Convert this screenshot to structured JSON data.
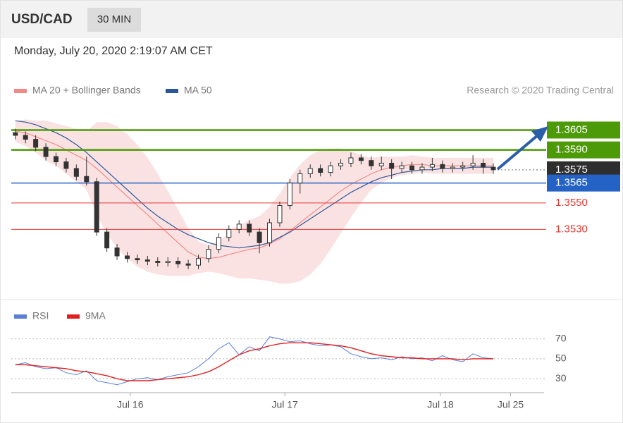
{
  "header": {
    "symbol": "USD/CAD",
    "interval": "30 MIN",
    "timestamp": "Monday, July 20, 2020 2:19:07 AM CET",
    "credit": "Research © 2020 Trading Central"
  },
  "chart_data": [
    {
      "type": "candlestick",
      "xlim": [
        -0.4,
        52.2
      ],
      "ylim": [
        1.3477,
        1.3626
      ],
      "open": [
        1.3603,
        1.3601,
        1.3598,
        1.3592,
        1.3585,
        1.3581,
        1.3576,
        1.357,
        1.3566,
        1.3528,
        1.3516,
        1.351,
        1.3508,
        1.3507,
        1.3506,
        1.3505,
        1.3506,
        1.3504,
        1.3503,
        1.3508,
        1.3515,
        1.3524,
        1.353,
        1.3534,
        1.3528,
        1.352,
        1.3535,
        1.3548,
        1.3565,
        1.3572,
        1.3576,
        1.3573,
        1.3578,
        1.358,
        1.3584,
        1.3582,
        1.3578,
        1.358,
        1.3576,
        1.3578,
        1.3575,
        1.3577,
        1.3579,
        1.3576,
        1.3577,
        1.3578,
        1.358,
        1.3577
      ],
      "high": [
        1.3606,
        1.3604,
        1.3601,
        1.3595,
        1.3588,
        1.3584,
        1.3579,
        1.3585,
        1.3569,
        1.3531,
        1.3519,
        1.3513,
        1.3511,
        1.351,
        1.3509,
        1.3509,
        1.3509,
        1.3507,
        1.3511,
        1.3518,
        1.3527,
        1.3533,
        1.3537,
        1.3537,
        1.3531,
        1.3538,
        1.3551,
        1.3568,
        1.3575,
        1.3579,
        1.3579,
        1.3581,
        1.3583,
        1.3588,
        1.3587,
        1.3585,
        1.3585,
        1.3583,
        1.3581,
        1.3581,
        1.358,
        1.3584,
        1.3582,
        1.358,
        1.3581,
        1.3586,
        1.3583,
        1.358
      ],
      "low": [
        1.3598,
        1.3595,
        1.3589,
        1.3582,
        1.3578,
        1.3573,
        1.3567,
        1.3563,
        1.3525,
        1.3513,
        1.3507,
        1.3505,
        1.3504,
        1.3503,
        1.3502,
        1.3502,
        1.3501,
        1.35,
        1.35,
        1.3505,
        1.3512,
        1.3521,
        1.3527,
        1.3525,
        1.3512,
        1.3517,
        1.3532,
        1.3545,
        1.3557,
        1.3569,
        1.357,
        1.357,
        1.3575,
        1.3577,
        1.3579,
        1.3575,
        1.3575,
        1.3568,
        1.3573,
        1.3572,
        1.3572,
        1.3574,
        1.3573,
        1.3573,
        1.3574,
        1.3575,
        1.3572,
        1.3572
      ],
      "close": [
        1.3601,
        1.3598,
        1.3592,
        1.3585,
        1.3581,
        1.3576,
        1.357,
        1.3566,
        1.3528,
        1.3516,
        1.351,
        1.3508,
        1.3507,
        1.3506,
        1.3505,
        1.3506,
        1.3504,
        1.3503,
        1.3508,
        1.3515,
        1.3524,
        1.353,
        1.3534,
        1.3528,
        1.352,
        1.3535,
        1.3548,
        1.3565,
        1.3572,
        1.3576,
        1.3573,
        1.3578,
        1.358,
        1.3584,
        1.3582,
        1.3578,
        1.358,
        1.3576,
        1.3578,
        1.3575,
        1.3577,
        1.3579,
        1.3576,
        1.3577,
        1.3578,
        1.358,
        1.3577,
        1.3575
      ],
      "series": [
        {
          "name": "MA 20 + Bollinger Bands",
          "color": "#f08a8a",
          "values": [
            1.3604,
            1.3603,
            1.36,
            1.3597,
            1.3594,
            1.359,
            1.3586,
            1.3582,
            1.3576,
            1.3569,
            1.3562,
            1.3555,
            1.3548,
            1.3541,
            1.3534,
            1.3527,
            1.352,
            1.3513,
            1.3509,
            1.3508,
            1.3509,
            1.3511,
            1.3513,
            1.3515,
            1.3516,
            1.3519,
            1.3523,
            1.3529,
            1.3535,
            1.3541,
            1.3547,
            1.3553,
            1.3559,
            1.3564,
            1.3568,
            1.3572,
            1.3575,
            1.3577,
            1.3578,
            1.3579,
            1.3579,
            1.3578,
            1.3578,
            1.3578,
            1.3578,
            1.3578,
            1.3578,
            1.3578
          ],
          "upper": [
            1.3612,
            1.3613,
            1.3612,
            1.3612,
            1.361,
            1.3608,
            1.3606,
            1.3604,
            1.3611,
            1.3611,
            1.3608,
            1.3602,
            1.3594,
            1.3584,
            1.3572,
            1.3559,
            1.3545,
            1.3531,
            1.3521,
            1.3518,
            1.3521,
            1.3527,
            1.3533,
            1.3537,
            1.354,
            1.3547,
            1.3557,
            1.3569,
            1.3579,
            1.3586,
            1.359,
            1.3591,
            1.3591,
            1.3589,
            1.3586,
            1.3584,
            1.3585,
            1.3585,
            1.3585,
            1.3586,
            1.3585,
            1.3584,
            1.3584,
            1.3584,
            1.3584,
            1.3584,
            1.3584,
            1.3584
          ],
          "lower": [
            1.3596,
            1.3593,
            1.3588,
            1.3582,
            1.3578,
            1.3572,
            1.3566,
            1.356,
            1.3541,
            1.3527,
            1.3516,
            1.3508,
            1.3502,
            1.3498,
            1.3496,
            1.3495,
            1.3495,
            1.3495,
            1.3497,
            1.3498,
            1.3497,
            1.3495,
            1.3493,
            1.3493,
            1.3492,
            1.3491,
            1.3489,
            1.3489,
            1.3491,
            1.3496,
            1.3504,
            1.3515,
            1.3527,
            1.3539,
            1.355,
            1.356,
            1.3565,
            1.3569,
            1.3571,
            1.3572,
            1.3573,
            1.3572,
            1.3572,
            1.3572,
            1.3572,
            1.3572,
            1.3572,
            1.3572
          ]
        },
        {
          "name": "MA 50",
          "color": "#2b579a",
          "values": [
            1.3612,
            1.3611,
            1.3609,
            1.3606,
            1.3603,
            1.3599,
            1.3594,
            1.3588,
            1.3581,
            1.3574,
            1.3567,
            1.356,
            1.3553,
            1.3546,
            1.354,
            1.3535,
            1.353,
            1.3526,
            1.3523,
            1.352,
            1.3518,
            1.3517,
            1.3516,
            1.3517,
            1.3518,
            1.352,
            1.3524,
            1.3528,
            1.3533,
            1.3538,
            1.3543,
            1.3548,
            1.3553,
            1.3558,
            1.3562,
            1.3566,
            1.3569,
            1.3571,
            1.3573,
            1.3574,
            1.3575,
            1.3575,
            1.3576,
            1.3576,
            1.3576,
            1.3577,
            1.3577,
            1.3577
          ]
        }
      ],
      "levels": [
        {
          "value": 1.3605,
          "label": "1.3605",
          "color": "#4c9a07"
        },
        {
          "value": 1.359,
          "label": "1.3590",
          "color": "#4c9a07"
        },
        {
          "value": 1.3575,
          "label": "1.3575",
          "color": "#2e2e2e"
        },
        {
          "value": 1.3565,
          "label": "1.3565",
          "color": "#2463c5"
        },
        {
          "value": 1.355,
          "label": "1.3550",
          "color": "#e53935"
        },
        {
          "value": 1.353,
          "label": "1.3530",
          "color": "#e53935"
        }
      ]
    },
    {
      "type": "line",
      "xlim": [
        -0.4,
        52.2
      ],
      "ylim": [
        16,
        81
      ],
      "yticks": [
        30,
        50,
        70
      ],
      "grid": true,
      "xticks": [
        {
          "value": 11.3,
          "label": "Jul 16"
        },
        {
          "value": 26.5,
          "label": "Jul 17"
        },
        {
          "value": 41.8,
          "label": "Jul 18"
        },
        {
          "value": 48.7,
          "label": "Jul 25"
        }
      ],
      "series": [
        {
          "name": "RSI",
          "color": "#5b7fd6",
          "values": [
            44,
            46,
            42,
            40,
            41,
            36,
            34,
            38,
            28,
            26,
            24,
            27,
            30,
            31,
            29,
            32,
            34,
            36,
            42,
            50,
            60,
            66,
            54,
            62,
            58,
            72,
            70,
            67,
            68,
            65,
            63,
            64,
            62,
            55,
            52,
            50,
            51,
            49,
            52,
            50,
            51,
            48,
            53,
            49,
            47,
            55,
            51,
            50
          ]
        },
        {
          "name": "9MA",
          "color": "#e02020",
          "values": [
            44,
            44,
            43,
            42,
            41,
            40,
            38,
            37,
            35,
            33,
            30,
            28,
            28,
            28,
            29,
            30,
            31,
            32,
            34,
            37,
            42,
            48,
            54,
            58,
            60,
            63,
            65,
            66,
            66,
            66,
            65,
            64,
            63,
            61,
            58,
            55,
            53,
            52,
            51,
            51,
            50,
            50,
            50,
            50,
            49,
            50,
            50,
            50
          ]
        }
      ]
    }
  ]
}
